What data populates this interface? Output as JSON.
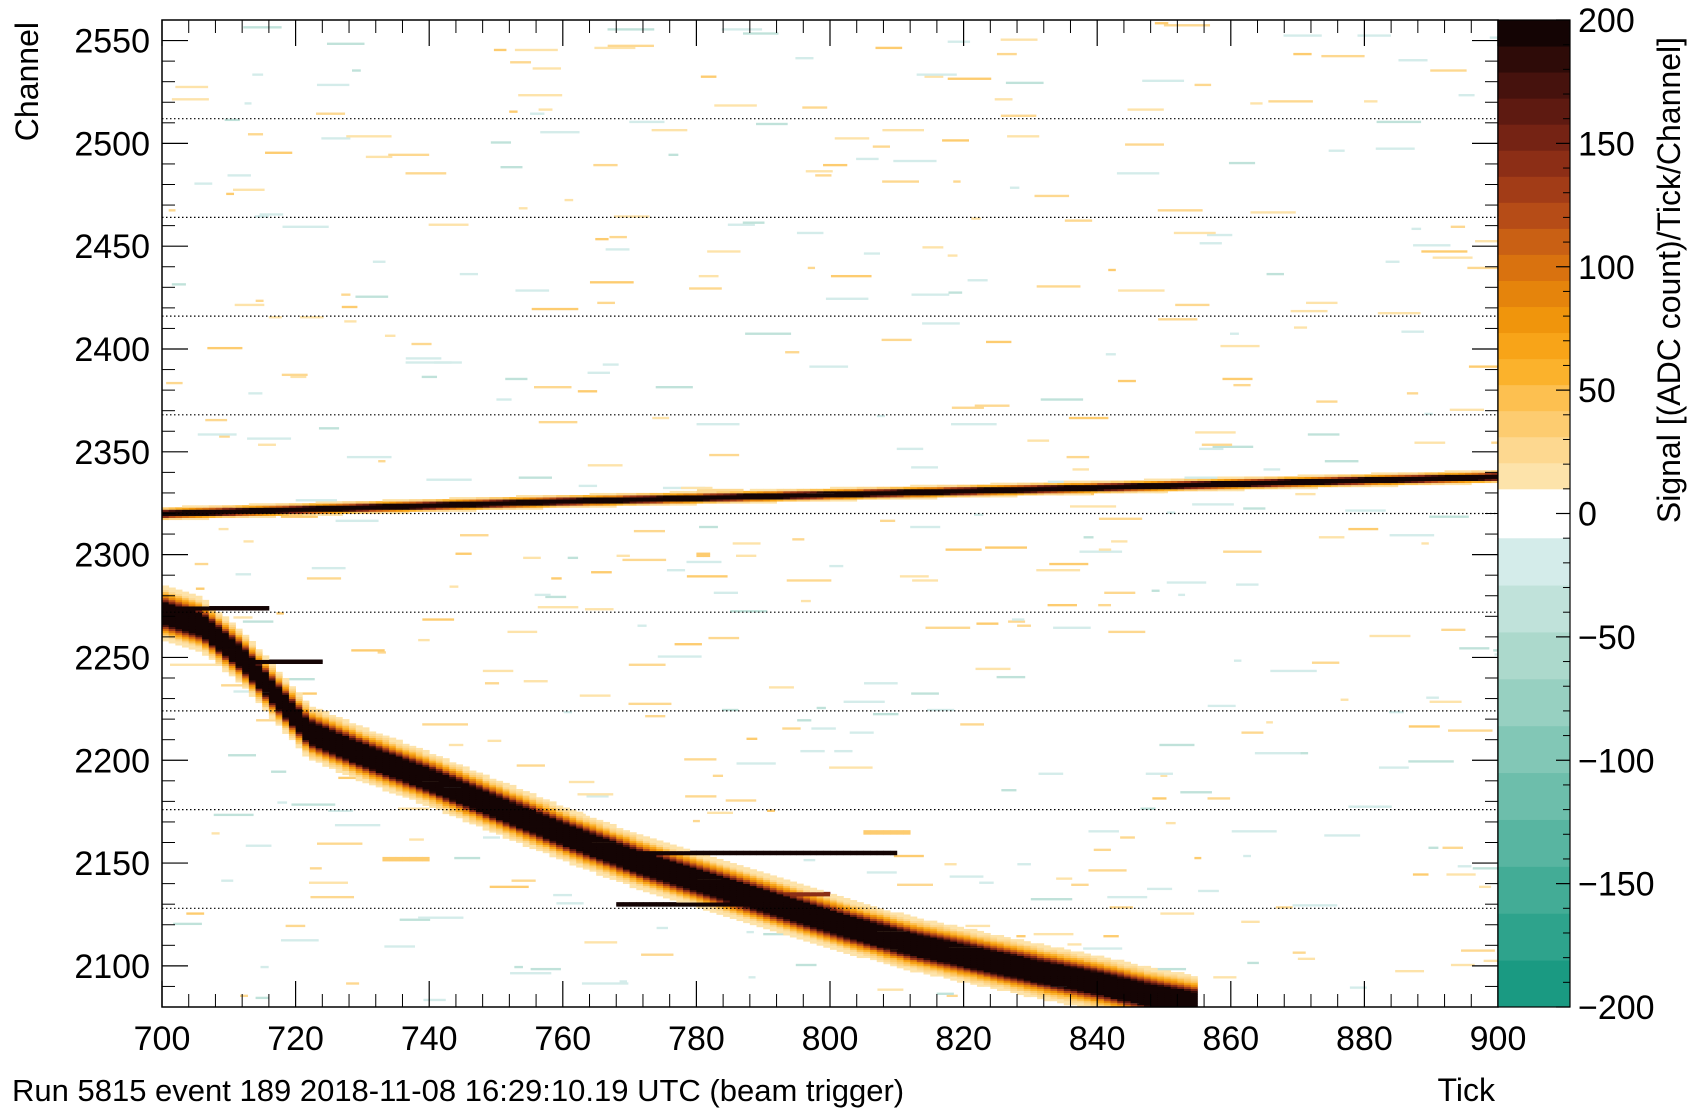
{
  "caption": "Run 5815 event 189 2018-11-08 16:29:10.19 UTC (beam trigger)",
  "chart_data": {
    "type": "heatmap",
    "title": "",
    "xlabel": "Tick",
    "ylabel": "Channel",
    "zlabel": "Signal [(ADC count)/Tick/Channel]",
    "xlim": [
      700,
      900
    ],
    "ylim": [
      2080,
      2560
    ],
    "zlim": [
      -200,
      200
    ],
    "x_ticks": [
      700,
      720,
      740,
      760,
      780,
      800,
      820,
      840,
      860,
      880,
      900
    ],
    "y_ticks": [
      2100,
      2150,
      2200,
      2250,
      2300,
      2350,
      2400,
      2450,
      2500,
      2550
    ],
    "z_ticks": [
      -200,
      -150,
      -100,
      -50,
      0,
      50,
      100,
      150,
      200
    ],
    "dotted_channel_lines": [
      2128,
      2176,
      2224,
      2272,
      2320,
      2368,
      2416,
      2464,
      2512
    ],
    "grid": false,
    "colorbar": {
      "position": "right",
      "negative_colors": [
        "#1a9a82",
        "#2ea38c",
        "#43ac96",
        "#58b5a1",
        "#6dbeab",
        "#82c7b6",
        "#97d0c1",
        "#acd9cc",
        "#c0e2da",
        "#d4ecea"
      ],
      "positive_colors": [
        "#fde3aa",
        "#fdd890",
        "#fdcc70",
        "#fdc050",
        "#fbb22c",
        "#f8a418",
        "#f0950c",
        "#e5840c",
        "#d9720f",
        "#c96014",
        "#b64c17",
        "#a23c17",
        "#8c2e16",
        "#752314",
        "#5e1a11",
        "#46120d",
        "#2e0b08",
        "#140404"
      ]
    },
    "series": [
      {
        "kind": "track",
        "points": [
          [
            700,
            2320
          ],
          [
            760,
            2326
          ],
          [
            820,
            2331
          ],
          [
            900,
            2338
          ]
        ],
        "width_channels": 1.2,
        "peak": 200
      },
      {
        "kind": "track",
        "points": [
          [
            700,
            2272
          ],
          [
            706,
            2266
          ],
          [
            712,
            2250
          ],
          [
            717,
            2232
          ],
          [
            722,
            2214
          ],
          [
            730,
            2203
          ],
          [
            740,
            2191
          ],
          [
            752,
            2175
          ],
          [
            762,
            2162
          ],
          [
            772,
            2150
          ],
          [
            782,
            2140
          ],
          [
            792,
            2130
          ],
          [
            802,
            2120
          ],
          [
            812,
            2111
          ],
          [
            822,
            2104
          ],
          [
            832,
            2097
          ],
          [
            840,
            2092
          ],
          [
            848,
            2086
          ],
          [
            855,
            2082
          ]
        ],
        "width_channels": 5,
        "peak": 200
      },
      {
        "kind": "deposit",
        "points": [
          [
            701,
            2274
          ],
          [
            716,
            2272
          ]
        ],
        "peak": 200
      },
      {
        "kind": "deposit",
        "points": [
          [
            714,
            2248
          ],
          [
            724,
            2248
          ]
        ],
        "peak": 200
      },
      {
        "kind": "deposit",
        "points": [
          [
            768,
            2155
          ],
          [
            810,
            2155
          ]
        ],
        "peak": 200
      },
      {
        "kind": "deposit",
        "points": [
          [
            768,
            2130
          ],
          [
            796,
            2130
          ]
        ],
        "peak": 190
      },
      {
        "kind": "deposit",
        "points": [
          [
            783,
            2135
          ],
          [
            800,
            2135
          ]
        ],
        "peak": 120
      },
      {
        "kind": "deposit",
        "points": [
          [
            805,
            2165
          ],
          [
            812,
            2165
          ]
        ],
        "peak": 30
      },
      {
        "kind": "deposit",
        "points": [
          [
            733,
            2152
          ],
          [
            740,
            2152
          ]
        ],
        "peak": 30
      },
      {
        "kind": "deposit",
        "points": [
          [
            780,
            2300
          ],
          [
            782,
            2300
          ]
        ],
        "peak": 30
      },
      {
        "kind": "noise",
        "region": [
          [
            700,
            900
          ],
          [
            2080,
            2560
          ]
        ],
        "amplitude": 40
      }
    ]
  }
}
